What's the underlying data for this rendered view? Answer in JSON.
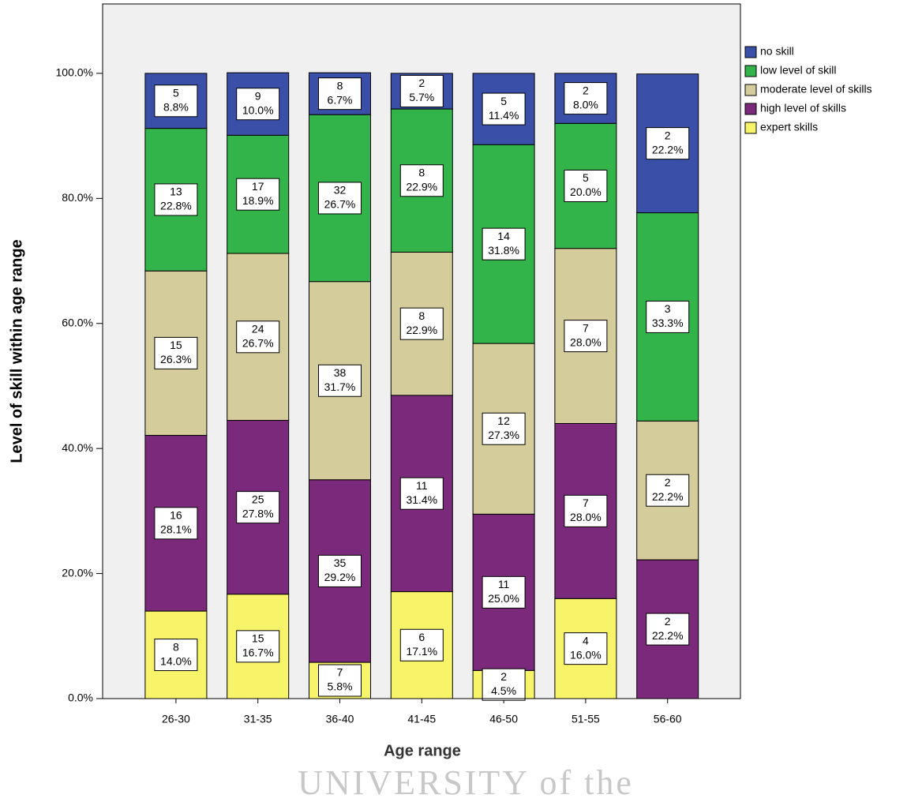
{
  "chart_data": {
    "type": "stacked_bar",
    "x_label": "Age range",
    "y_label": "Level of skill within age range",
    "watermark": "UNIVERSITY of the",
    "categories": [
      "26-30",
      "31-35",
      "36-40",
      "41-45",
      "46-50",
      "51-55",
      "56-60"
    ],
    "series": [
      {
        "name": "expert skills",
        "color": "#f8f46a",
        "values": [
          14.0,
          16.7,
          5.8,
          17.1,
          4.5,
          16.0,
          null
        ],
        "counts": [
          8,
          15,
          7,
          6,
          2,
          4,
          null
        ],
        "value_labels": [
          "14.0%",
          "16.7%",
          "5.8%",
          "17.1%",
          "4.5%",
          "16.0%",
          null
        ]
      },
      {
        "name": "high level of skills",
        "color": "#7b2a7b",
        "values": [
          28.1,
          27.8,
          29.2,
          31.4,
          25.0,
          28.0,
          22.2
        ],
        "counts": [
          16,
          25,
          35,
          11,
          11,
          7,
          2
        ],
        "value_labels": [
          "28.1%",
          "27.8%",
          "29.2%",
          "31.4%",
          "25.0%",
          "28.0%",
          "22.2%"
        ]
      },
      {
        "name": "moderate level of skills",
        "color": "#d4cc9a",
        "values": [
          26.3,
          26.7,
          31.7,
          22.9,
          27.3,
          28.0,
          22.2
        ],
        "counts": [
          15,
          24,
          38,
          8,
          12,
          7,
          2
        ],
        "value_labels": [
          "26.3%",
          "26.7%",
          "31.7%",
          "22.9%",
          "27.3%",
          "28.0%",
          "22.2%"
        ]
      },
      {
        "name": "low level of skill",
        "color": "#33b44a",
        "values": [
          22.8,
          18.9,
          26.7,
          22.9,
          31.8,
          20.0,
          33.3
        ],
        "counts": [
          13,
          17,
          32,
          8,
          14,
          5,
          3
        ],
        "value_labels": [
          "22.8%",
          "18.9%",
          "26.7%",
          "22.9%",
          "31.8%",
          "20.0%",
          "33.3%"
        ]
      },
      {
        "name": "no skill",
        "color": "#3a50a8",
        "values": [
          8.8,
          10.0,
          6.7,
          5.7,
          11.4,
          8.0,
          22.2
        ],
        "counts": [
          5,
          9,
          8,
          2,
          5,
          2,
          2
        ],
        "value_labels": [
          "8.8%",
          "10.0%",
          "6.7%",
          "5.7%",
          "11.4%",
          "8.0%",
          "22.2%"
        ]
      }
    ],
    "ylim": [
      0,
      111.1
    ],
    "yticks": [
      {
        "value": 0,
        "label": "0.0%"
      },
      {
        "value": 20,
        "label": "20.0%"
      },
      {
        "value": 40,
        "label": "40.0%"
      },
      {
        "value": 60,
        "label": "60.0%"
      },
      {
        "value": 80,
        "label": "80.0%"
      },
      {
        "value": 100,
        "label": "100.0%"
      }
    ],
    "legend": "right"
  }
}
